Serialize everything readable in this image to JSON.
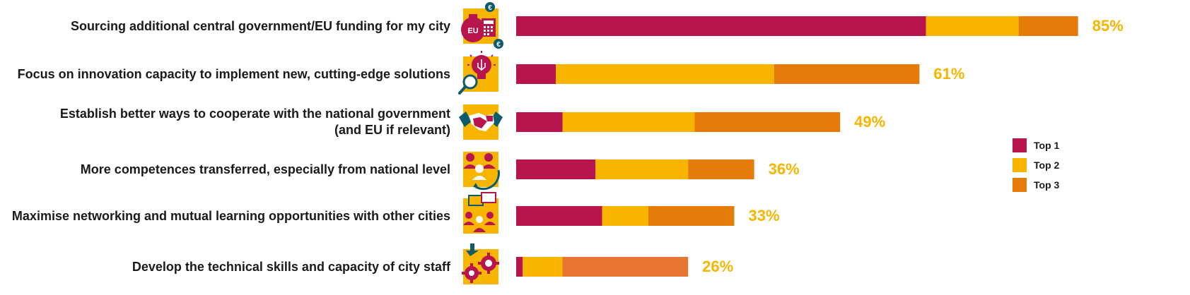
{
  "chart_data": {
    "type": "bar",
    "orientation": "horizontal",
    "stacked": true,
    "categories": [
      "Sourcing additional central government/EU funding for my city",
      "Focus on innovation capacity to implement new, cutting-edge solutions",
      "Establish better ways to cooperate with the national government\n(and EU if relevant)",
      "More competences transferred, especially from national level",
      "Maximise networking and mutual learning opportunities with other cities",
      "Develop the technical skills and capacity of city staff"
    ],
    "series": [
      {
        "name": "Top 1",
        "color": "#b8154f",
        "values": [
          62,
          6,
          7,
          12,
          13,
          1
        ]
      },
      {
        "name": "Top 2",
        "color": "#f7b500",
        "values": [
          14,
          33,
          20,
          14,
          7,
          6
        ]
      },
      {
        "name": "Top 3",
        "color": "#e57c0a",
        "values": [
          9,
          22,
          22,
          10,
          13,
          19
        ]
      }
    ],
    "totals": [
      85,
      61,
      49,
      36,
      33,
      26
    ],
    "total_labels": [
      "85%",
      "61%",
      "49%",
      "36%",
      "33%",
      "26%"
    ],
    "xlim": [
      0,
      100
    ],
    "grid": false,
    "legend_position": "right",
    "icons": [
      "funding-icon",
      "innovation-icon",
      "handshake-icon",
      "competences-icon",
      "networking-icon",
      "skills-icon"
    ]
  }
}
